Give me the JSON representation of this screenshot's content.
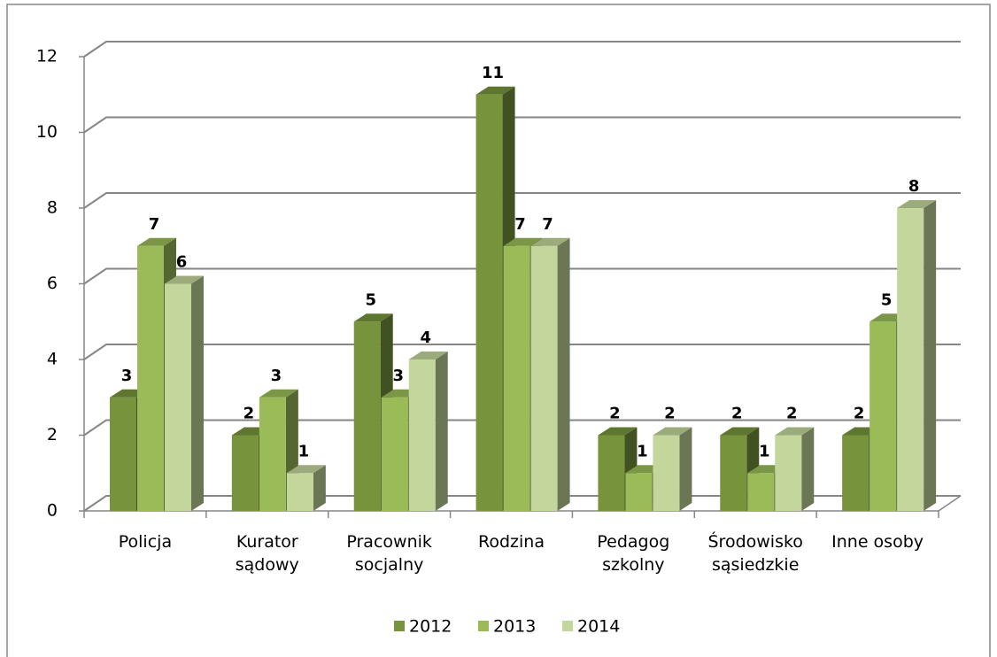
{
  "chart_data": {
    "type": "bar3d",
    "categories": [
      "Policja",
      "Kurator sądowy",
      "Pracownik socjalny",
      "Rodzina",
      "Pedagog szkolny",
      "Środowisko sąsiedzkie",
      "Inne osoby"
    ],
    "series": [
      {
        "name": "2012",
        "color": "#77933c",
        "values": [
          3,
          2,
          5,
          11,
          2,
          2,
          2
        ]
      },
      {
        "name": "2013",
        "color": "#9bbb59",
        "values": [
          7,
          3,
          3,
          7,
          1,
          1,
          5
        ]
      },
      {
        "name": "2014",
        "color": "#c3d69b",
        "values": [
          6,
          1,
          4,
          7,
          2,
          2,
          8
        ]
      }
    ],
    "ylim": [
      0,
      12
    ],
    "yticks": [
      0,
      2,
      4,
      6,
      8,
      10,
      12
    ],
    "grid": true,
    "legend": "bottom"
  }
}
